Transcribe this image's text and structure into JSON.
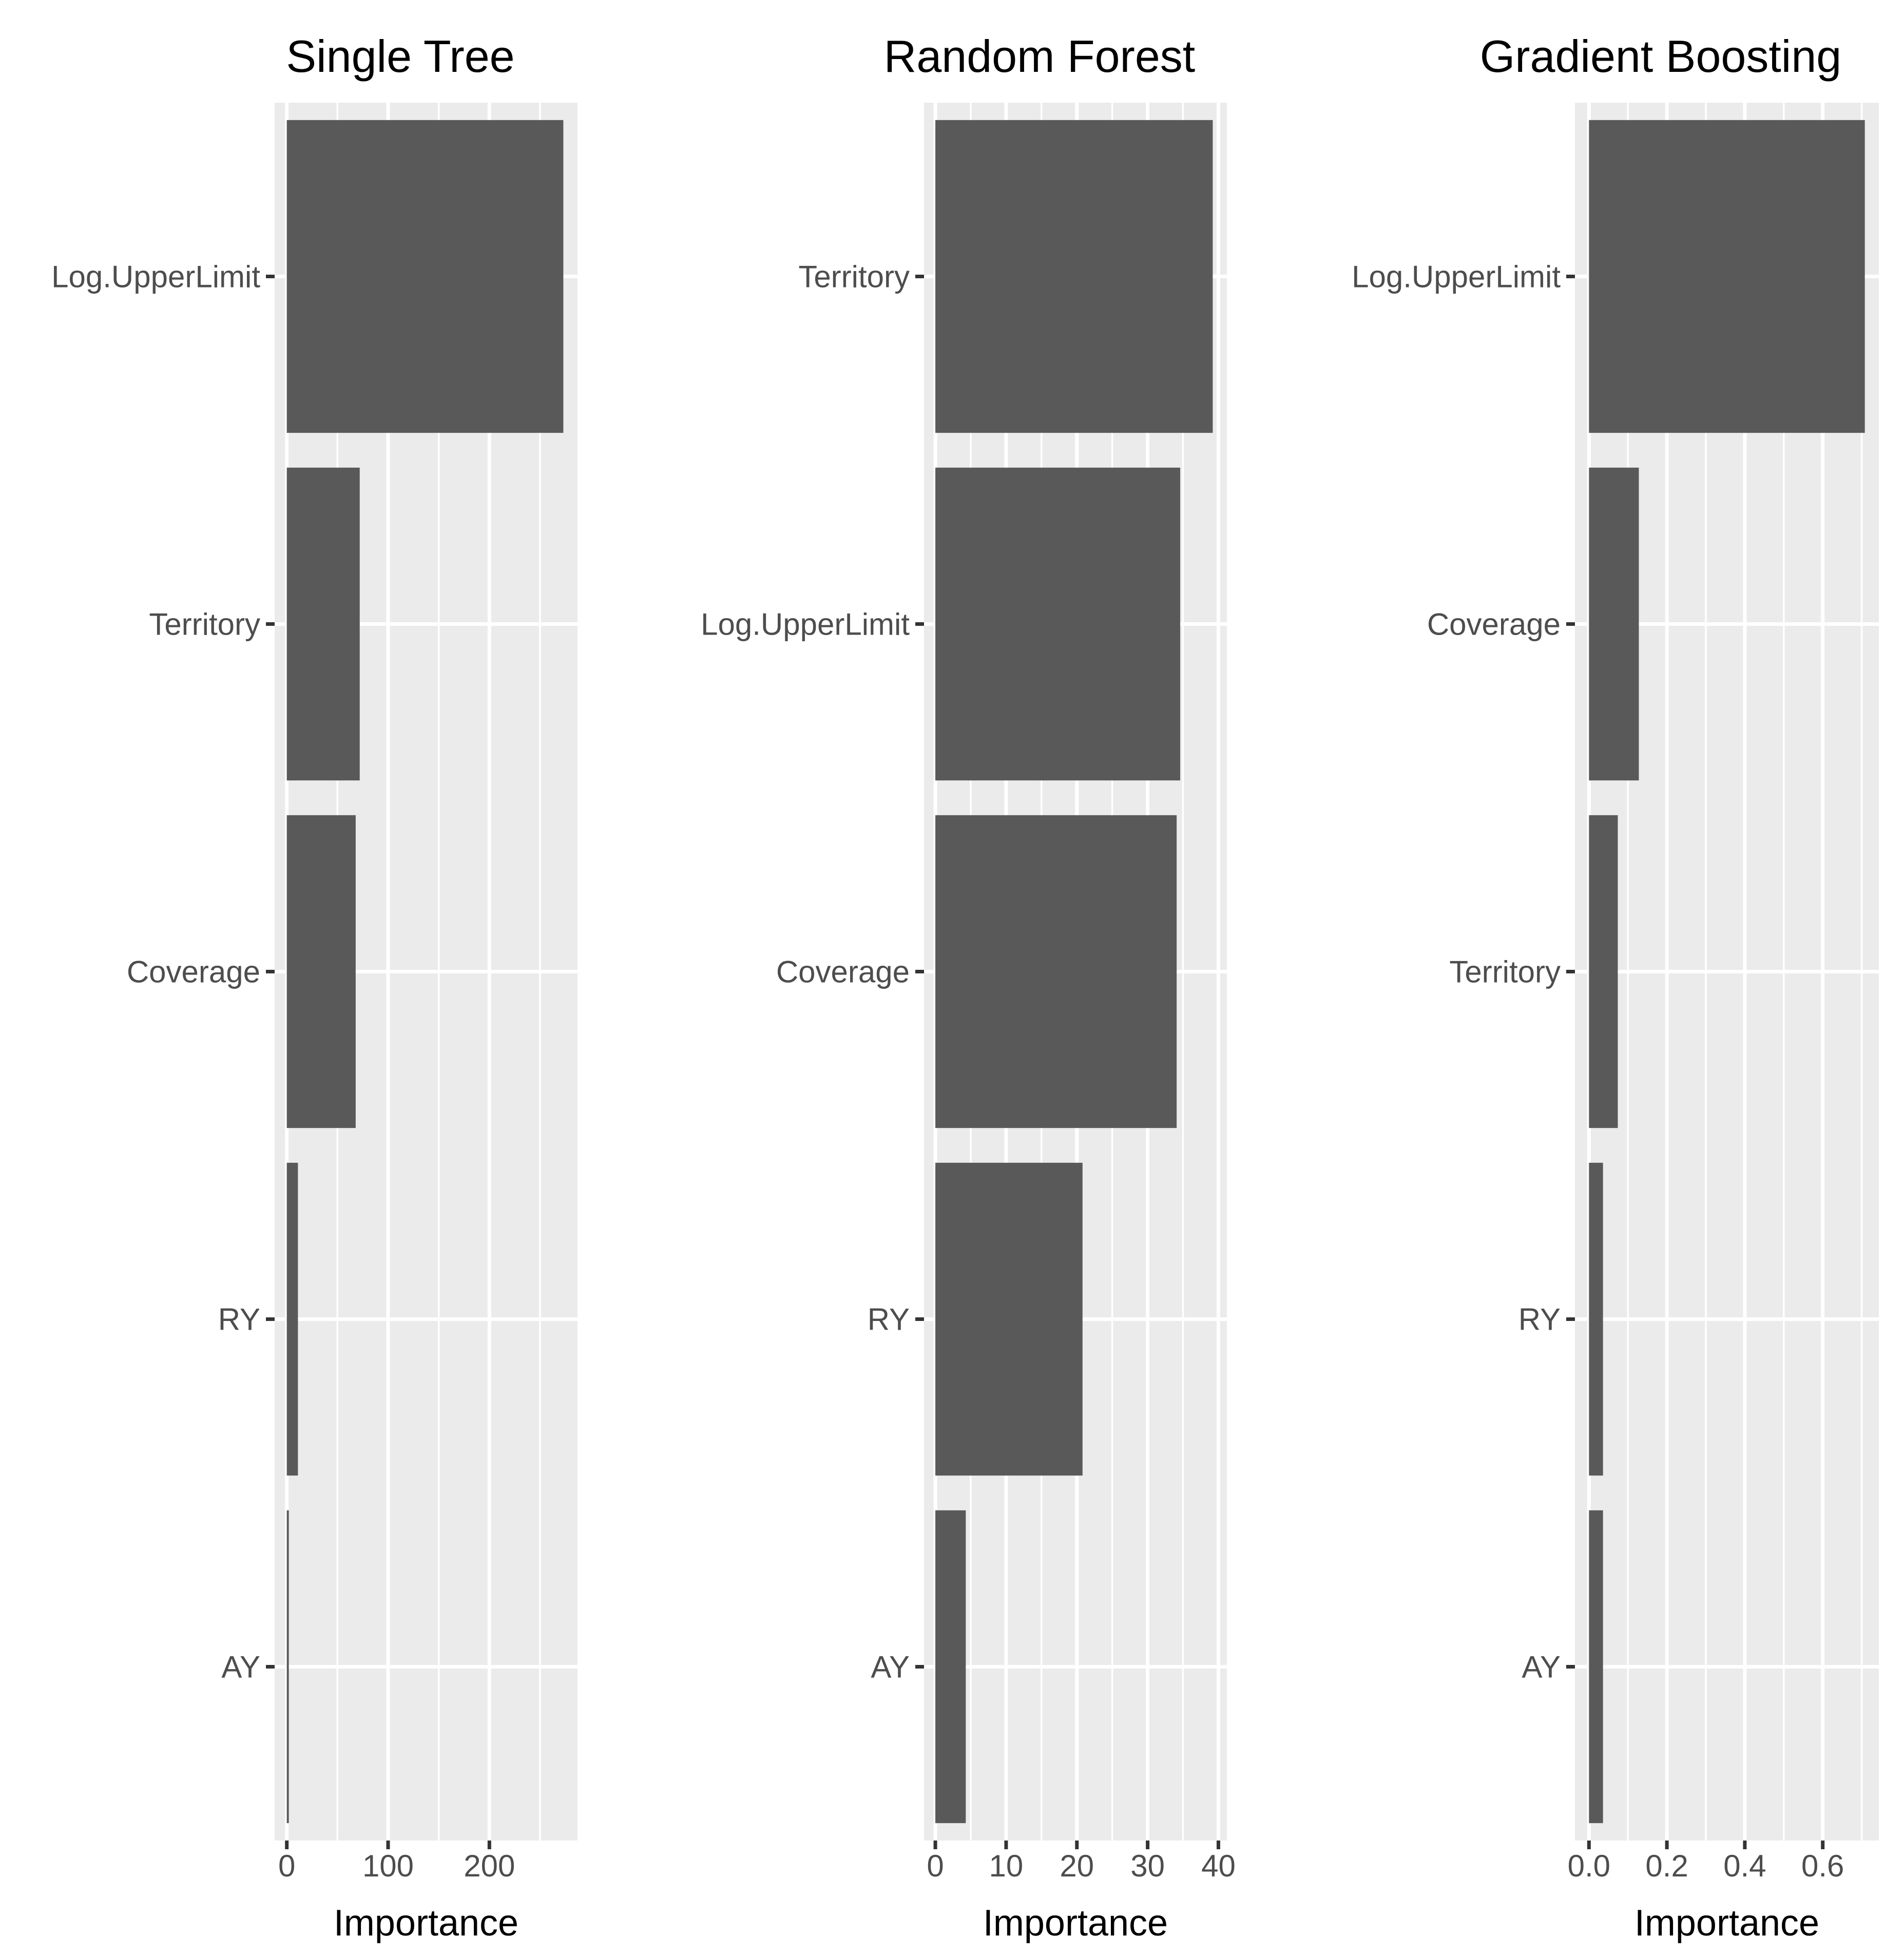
{
  "chart_data": [
    {
      "type": "bar",
      "orientation": "horizontal",
      "title": "Single Tree",
      "xlabel": "Importance",
      "ylabel": "",
      "categories": [
        "Log.UpperLimit",
        "Territory",
        "Coverage",
        "RY",
        "AY"
      ],
      "values": [
        273,
        72,
        68,
        11,
        2
      ],
      "xlim": [
        -12,
        287
      ],
      "x_ticks": [
        0,
        100,
        200
      ],
      "x_tick_labels": [
        "0",
        "100",
        "200"
      ],
      "x_minor": [
        50,
        150,
        250
      ],
      "grid": true
    },
    {
      "type": "bar",
      "orientation": "horizontal",
      "title": "Random Forest",
      "xlabel": "Importance",
      "ylabel": "",
      "categories": [
        "Territory",
        "Log.UpperLimit",
        "Coverage",
        "RY",
        "AY"
      ],
      "values": [
        39.2,
        34.6,
        34.1,
        20.8,
        4.3
      ],
      "xlim": [
        -1.6,
        41.2
      ],
      "x_ticks": [
        0,
        10,
        20,
        30,
        40
      ],
      "x_tick_labels": [
        "0",
        "10",
        "20",
        "30",
        "40"
      ],
      "x_minor": [
        5,
        15,
        25,
        35
      ],
      "grid": true
    },
    {
      "type": "bar",
      "orientation": "horizontal",
      "title": "Gradient Boosting",
      "xlabel": "Importance",
      "ylabel": "",
      "categories": [
        "Log.UpperLimit",
        "Coverage",
        "Territory",
        "RY",
        "AY"
      ],
      "values": [
        0.708,
        0.128,
        0.074,
        0.036,
        0.036
      ],
      "xlim": [
        -0.036,
        0.744
      ],
      "x_ticks": [
        0.0,
        0.2,
        0.4,
        0.6
      ],
      "x_tick_labels": [
        "0.0",
        "0.2",
        "0.4",
        "0.6"
      ],
      "x_minor": [
        0.1,
        0.3,
        0.5,
        0.7
      ],
      "grid": true
    }
  ]
}
